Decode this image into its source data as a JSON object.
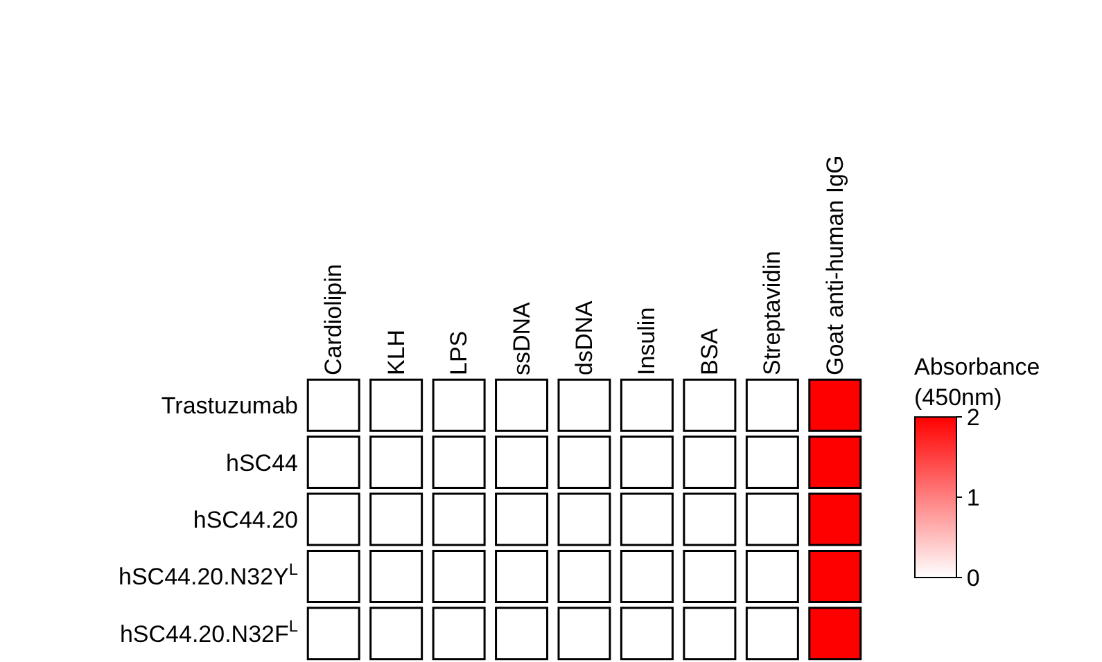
{
  "chart_data": {
    "type": "heatmap",
    "categories": [
      "Cardiolipin",
      "KLH",
      "LPS",
      "ssDNA",
      "dsDNA",
      "Insulin",
      "BSA",
      "Streptavidin",
      "Goat anti-human IgG"
    ],
    "y_categories": [
      "Trastuzumab",
      "hSC44",
      "hSC44.20",
      "hSC44.20.N32Y$^{L}$",
      "hSC44.20.N32F$^{L}$"
    ],
    "cells": [
      [
        0,
        0,
        0,
        0,
        0,
        0,
        0,
        0,
        2
      ],
      [
        0,
        0,
        0,
        0,
        0,
        0,
        0,
        0,
        2
      ],
      [
        0,
        0,
        0,
        0,
        0,
        0,
        0,
        0,
        2
      ],
      [
        0,
        0,
        0,
        0,
        0,
        0,
        0,
        0,
        2
      ],
      [
        0,
        0,
        0,
        0,
        0,
        0,
        0,
        0,
        2
      ]
    ],
    "color": "#ff0000",
    "clabel": "Absorbance\n(450nm)",
    "clim": [
      0,
      2
    ],
    "cticks": [
      0,
      1,
      2
    ]
  }
}
